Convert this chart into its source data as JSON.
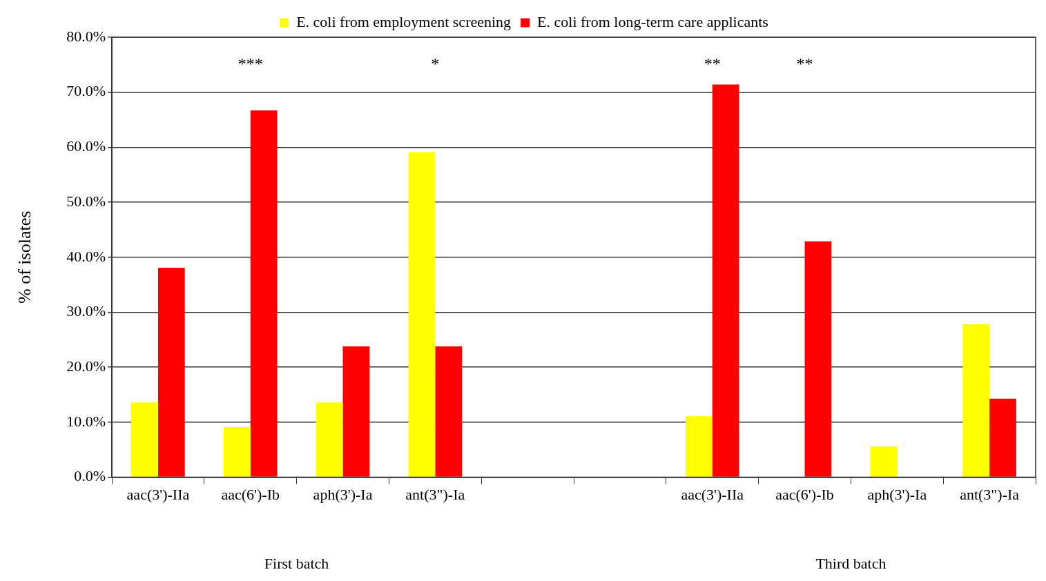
{
  "chart_data": {
    "type": "bar",
    "categories": [
      "aac(3')-IIa",
      "aac(6')-Ib",
      "aph(3')-Ia",
      "ant(3\")-Ia",
      null,
      null,
      "aac(3')-IIa",
      "aac(6')-Ib",
      "aph(3')-Ia",
      "ant(3\")-Ia"
    ],
    "series": [
      {
        "name": "E. coli from employment screening",
        "color": "#ffff00",
        "values": [
          13.6,
          9.1,
          13.6,
          59.1,
          null,
          null,
          11.1,
          0,
          5.6,
          27.8
        ]
      },
      {
        "name": "E. coli from long-term care applicants",
        "color": "#ff0000",
        "values": [
          38.1,
          66.7,
          23.8,
          23.8,
          null,
          null,
          71.4,
          42.9,
          0,
          14.3
        ]
      }
    ],
    "ylabel": "% of isolates",
    "ylim": [
      0,
      80
    ],
    "yticks": [
      {
        "value": 0,
        "label": "0.0%"
      },
      {
        "value": 10,
        "label": "10.0%"
      },
      {
        "value": 20,
        "label": "20.0%"
      },
      {
        "value": 30,
        "label": "30.0%"
      },
      {
        "value": 40,
        "label": "40.0%"
      },
      {
        "value": 50,
        "label": "50.0%"
      },
      {
        "value": 60,
        "label": "60.0%"
      },
      {
        "value": 70,
        "label": "70.0%"
      },
      {
        "value": 80,
        "label": "80.0%"
      }
    ],
    "grid": "y",
    "legend": "top",
    "annotations": [
      "***",
      "*",
      "**",
      "**",
      "First batch",
      "Third batch"
    ]
  }
}
